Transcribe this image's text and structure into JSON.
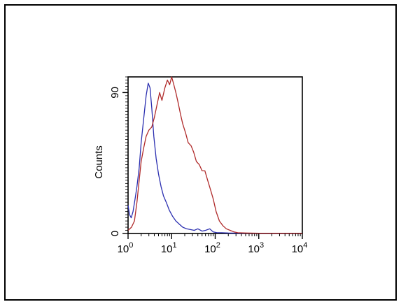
{
  "chart_data": {
    "type": "line",
    "title": "",
    "xlabel": "",
    "ylabel": "Counts",
    "x_scale": "log",
    "xlim": [
      1,
      10000
    ],
    "ylim": [
      0,
      100
    ],
    "x_ticks": [
      {
        "value": 1,
        "base": "10",
        "exp": "0"
      },
      {
        "value": 10,
        "base": "10",
        "exp": "1"
      },
      {
        "value": 100,
        "base": "10",
        "exp": "2"
      },
      {
        "value": 1000,
        "base": "10",
        "exp": "3"
      },
      {
        "value": 10000,
        "base": "10",
        "exp": "4"
      }
    ],
    "y_ticks": [
      {
        "value": 0,
        "label": "0"
      },
      {
        "value": 90,
        "label": "90"
      }
    ],
    "grid": false,
    "series": [
      {
        "color": "#2b2fb0",
        "x": [
          1,
          1.08,
          1.18,
          1.3,
          1.45,
          1.6,
          1.8,
          2.0,
          2.3,
          2.6,
          2.9,
          3.2,
          3.5,
          3.9,
          4.4,
          5.0,
          5.7,
          6.5,
          7.5,
          8.8,
          10.5,
          12.5,
          15,
          18,
          22,
          27,
          33,
          40,
          50,
          60,
          75,
          90,
          110,
          140,
          200,
          400,
          1000,
          3000,
          10000
        ],
        "y": [
          18,
          12,
          10,
          14,
          22,
          30,
          42,
          58,
          74,
          88,
          96,
          93,
          80,
          62,
          48,
          38,
          30,
          24,
          20,
          15,
          11,
          8,
          6,
          4,
          3,
          2.5,
          2,
          3,
          1.5,
          2,
          3,
          1,
          0.5,
          0.5,
          0.3,
          0.2,
          0.2,
          0.2,
          0.2
        ]
      },
      {
        "color": "#b02b2b",
        "x": [
          1,
          1.2,
          1.4,
          1.6,
          1.8,
          2.0,
          2.3,
          2.6,
          3.0,
          3.5,
          4.0,
          4.6,
          5.3,
          6.0,
          7.0,
          8.0,
          9.0,
          10.0,
          11.0,
          12.5,
          14,
          16,
          18,
          21,
          24,
          28,
          32,
          37,
          43,
          50,
          58,
          67,
          78,
          90,
          105,
          125,
          150,
          180,
          220,
          270,
          330,
          500,
          1000,
          3000,
          10000
        ],
        "y": [
          2,
          4,
          8,
          20,
          34,
          46,
          55,
          62,
          66,
          68,
          74,
          82,
          90,
          85,
          93,
          98,
          95,
          100,
          96,
          90,
          84,
          76,
          70,
          64,
          58,
          56,
          52,
          46,
          44,
          40,
          40,
          34,
          28,
          22,
          14,
          8,
          5,
          3,
          2,
          1,
          0.5,
          0.3,
          0.2,
          0.2,
          0.2
        ]
      }
    ]
  }
}
